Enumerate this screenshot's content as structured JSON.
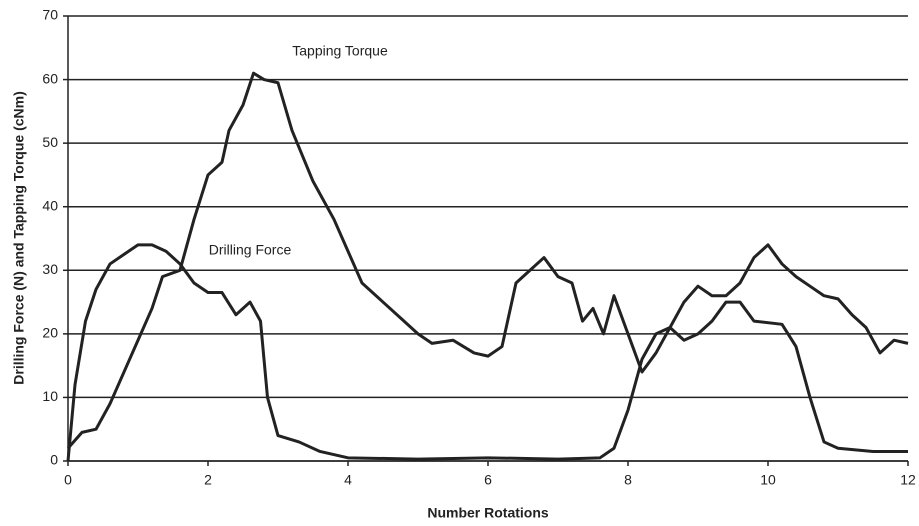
{
  "chart_data": {
    "type": "line",
    "x_label": "Number Rotations",
    "y_label": "Drilling Force (N) and Tapping Torque (cNm)",
    "xlim": [
      0,
      12
    ],
    "xticks": [
      0,
      2,
      4,
      6,
      8,
      10,
      12
    ],
    "ylim": [
      0,
      70
    ],
    "yticks": [
      0,
      10,
      20,
      30,
      40,
      50,
      60,
      70
    ],
    "grid": true,
    "series": [
      {
        "name": "Tapping Torque",
        "color": "#222222",
        "x": [
          0,
          0.2,
          0.4,
          0.6,
          0.8,
          1.0,
          1.2,
          1.35,
          1.6,
          1.8,
          2.0,
          2.2,
          2.3,
          2.5,
          2.65,
          2.8,
          3.0,
          3.2,
          3.5,
          3.8,
          4.0,
          4.2,
          4.5,
          4.8,
          5.0,
          5.2,
          5.5,
          5.8,
          6.0,
          6.2,
          6.4,
          6.6,
          6.8,
          7.0,
          7.2,
          7.35,
          7.5,
          7.65,
          7.8,
          8.0,
          8.2,
          8.4,
          8.6,
          8.8,
          9.0,
          9.2,
          9.4,
          9.6,
          9.8,
          10.0,
          10.2,
          10.4,
          10.6,
          10.8,
          11.0,
          11.2,
          11.4,
          11.6,
          11.8,
          12.0
        ],
        "values": [
          2,
          4.5,
          5,
          9,
          14,
          19,
          24,
          29,
          30,
          38,
          45,
          47,
          52,
          56,
          61,
          60,
          59.5,
          52,
          44,
          38,
          33,
          28,
          25,
          22,
          20,
          18.5,
          19,
          17,
          16.5,
          18,
          28,
          30,
          32,
          29,
          28,
          22,
          24,
          20,
          26,
          20,
          14,
          17,
          21,
          25,
          27.5,
          26,
          26,
          28,
          32,
          34,
          31,
          29,
          27.5,
          26,
          25.5,
          23,
          21,
          17,
          19,
          18.5
        ]
      },
      {
        "name": "Drilling Force",
        "color": "#222222",
        "x": [
          0,
          0.1,
          0.25,
          0.4,
          0.6,
          0.8,
          1.0,
          1.2,
          1.4,
          1.6,
          1.8,
          2.0,
          2.2,
          2.4,
          2.6,
          2.75,
          2.85,
          3.0,
          3.3,
          3.6,
          4.0,
          5.0,
          6.0,
          7.0,
          7.6,
          7.8,
          8.0,
          8.2,
          8.4,
          8.6,
          8.8,
          9.0,
          9.2,
          9.4,
          9.6,
          9.8,
          10.2,
          10.4,
          10.6,
          10.8,
          11.0,
          11.5,
          12.0
        ],
        "values": [
          0,
          12,
          22,
          27,
          31,
          32.5,
          34,
          34,
          33,
          31,
          28,
          26.5,
          26.5,
          23,
          25,
          22,
          10,
          4,
          3,
          1.5,
          0.5,
          0.3,
          0.5,
          0.3,
          0.5,
          2,
          8,
          16,
          20,
          21,
          19,
          20,
          22,
          25,
          25,
          22,
          21.5,
          18,
          10,
          3,
          2,
          1.5,
          1.5
        ]
      }
    ]
  }
}
